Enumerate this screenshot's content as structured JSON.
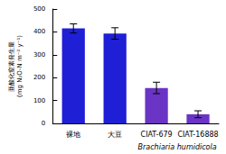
{
  "chart_data": {
    "type": "bar",
    "y_label": "亜酸化窒素発生量\n(mg N₂O-N m⁻² y⁻¹)",
    "categories": [
      "裸地",
      "大豆",
      "CIAT-679",
      "CIAT-16888"
    ],
    "values": [
      415,
      393,
      155,
      40
    ],
    "errors": [
      20,
      25,
      25,
      15
    ],
    "colors": [
      "#1f1fd6",
      "#1f1fd6",
      "#6a34c4",
      "#6a34c4"
    ],
    "annotation": "Brachiaria humidicola",
    "ylim": [
      0,
      500
    ],
    "yticks": [
      0,
      100,
      200,
      300,
      400,
      500
    ],
    "grid": false
  }
}
